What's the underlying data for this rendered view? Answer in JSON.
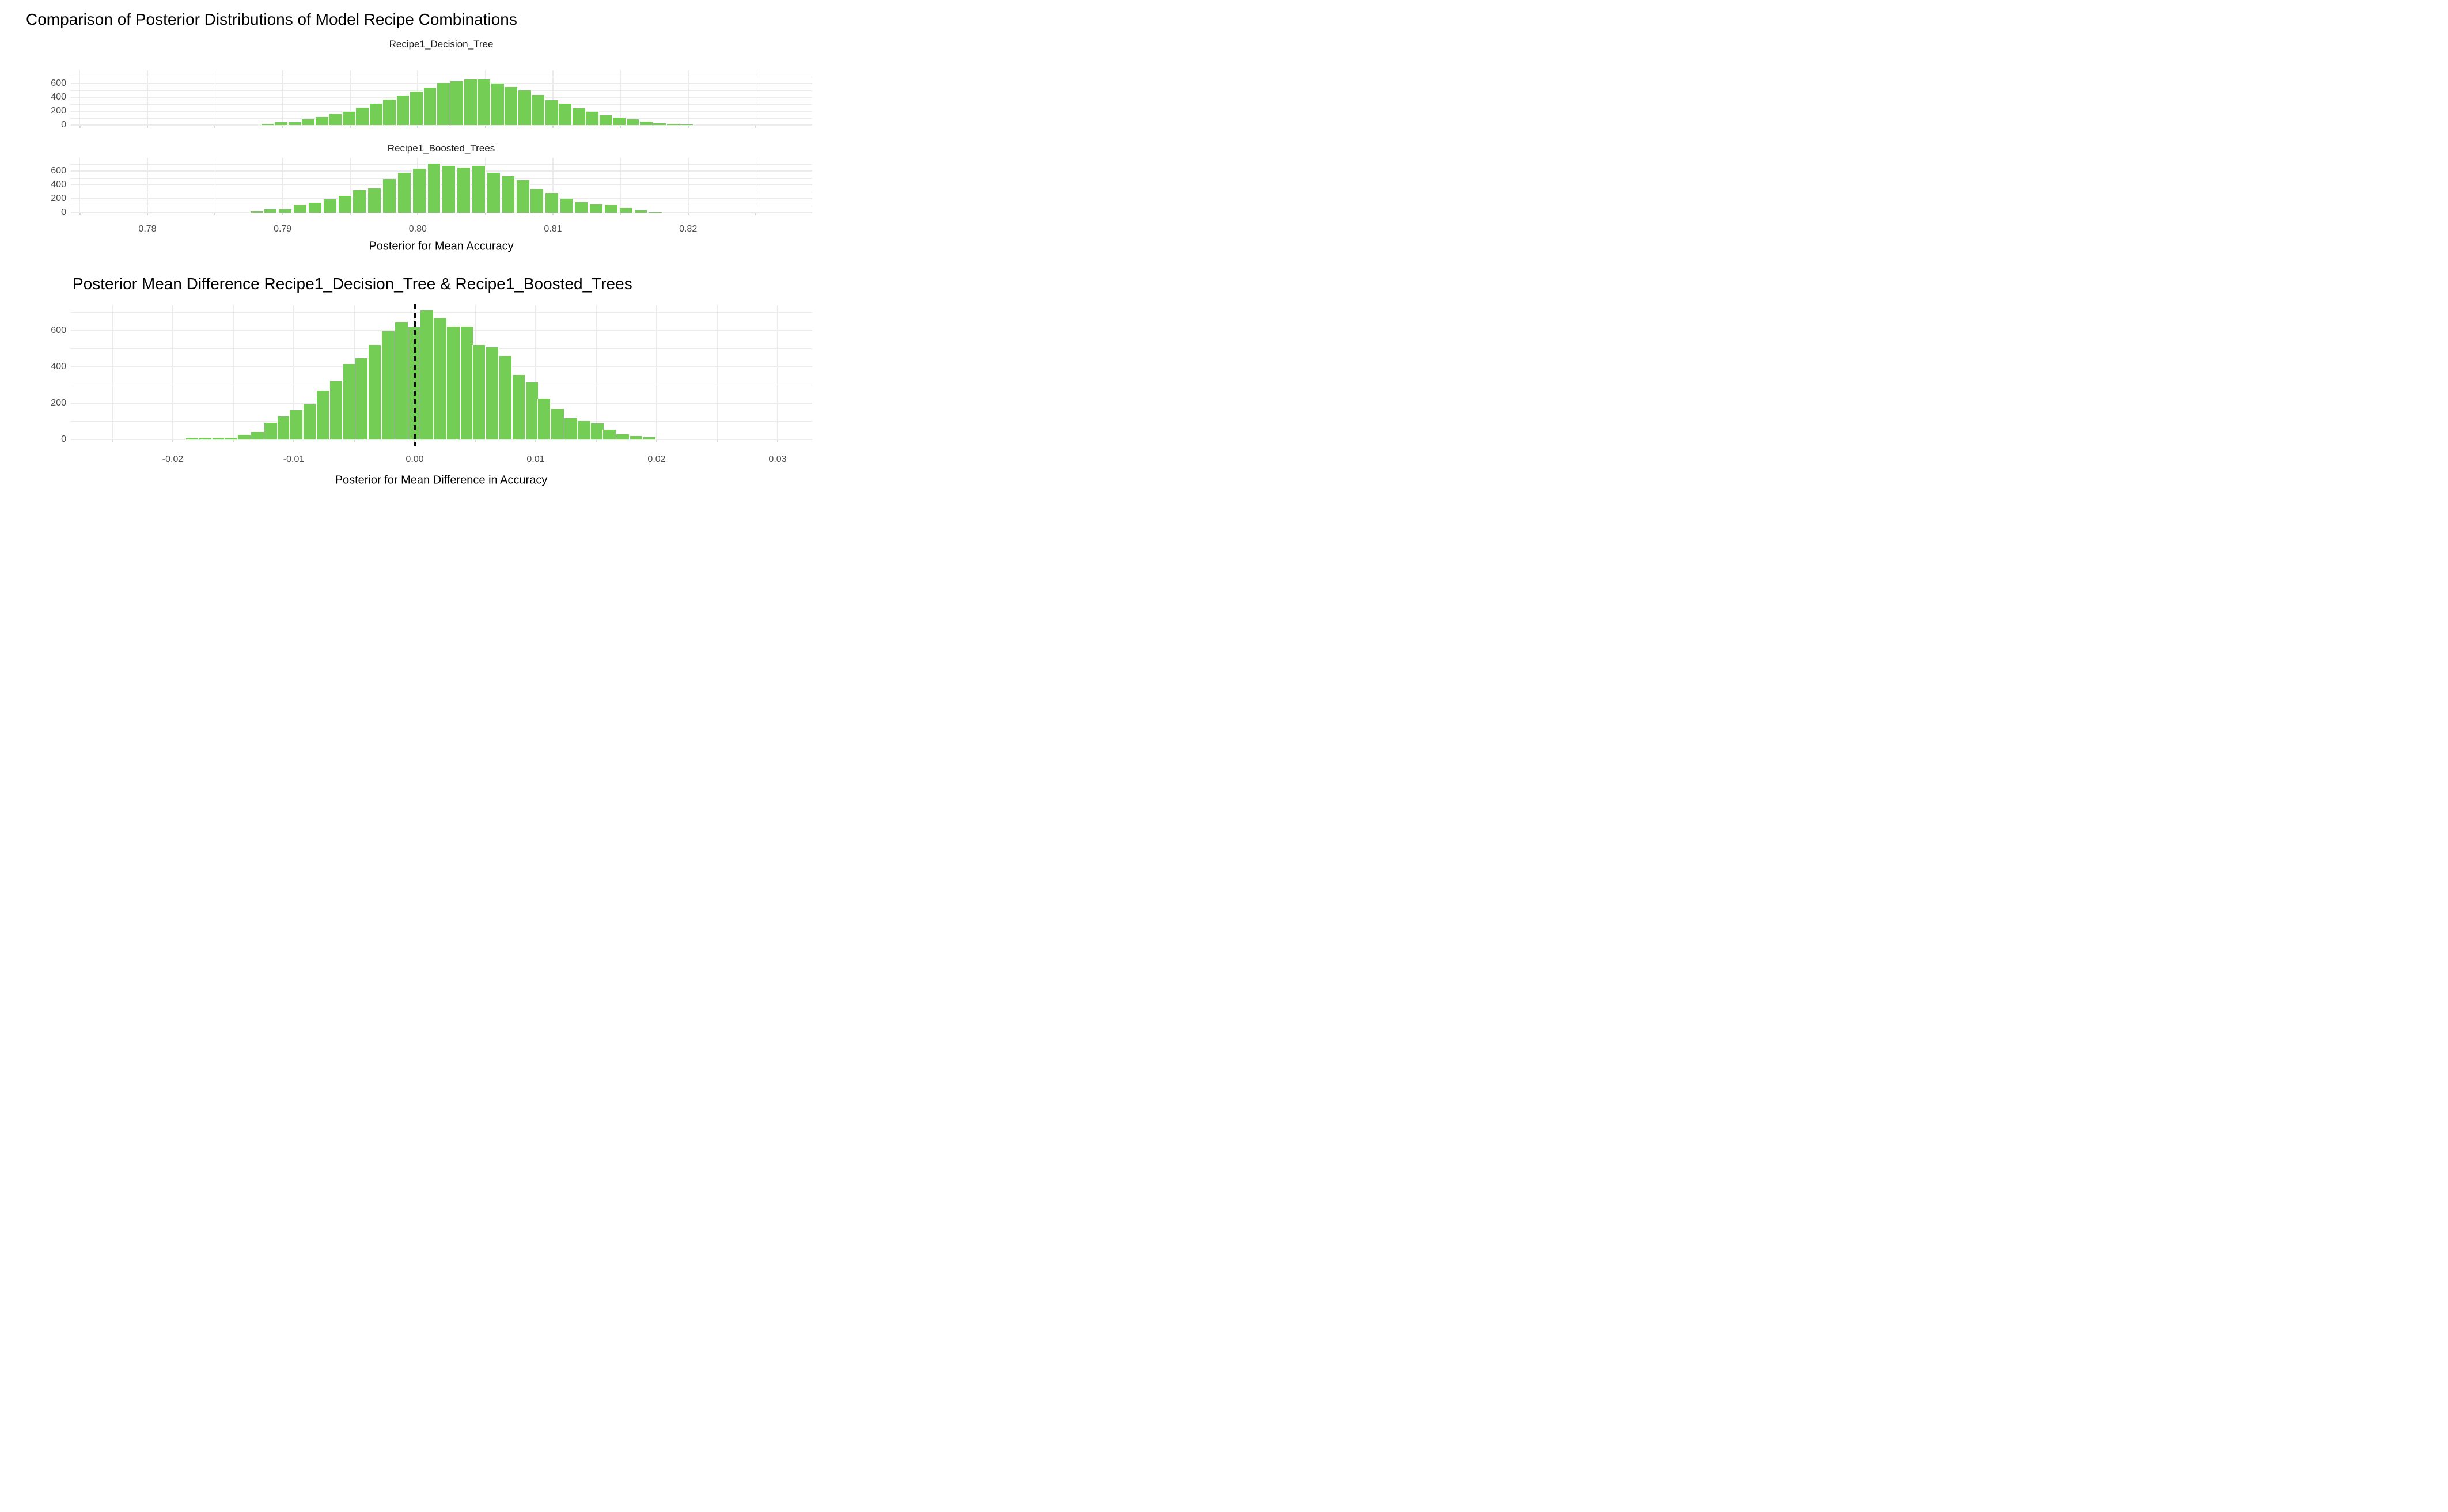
{
  "main_title": "Comparison of Posterior Distributions of Model Recipe Combinations",
  "colors": {
    "bar_fill": "#74ce56",
    "gridline": "#ebebeb",
    "tick_label": "#4d4d4d",
    "title_text": "#000000",
    "reference_line": "#000000",
    "background": "#ffffff"
  },
  "chart_data": [
    {
      "type": "histogram",
      "title": "Recipe1_Decision_Tree",
      "xlabel": "Posterior for Mean Accuracy",
      "ylabel": "",
      "legend": "none",
      "grid": "on",
      "xlim": [
        0.7744,
        0.8292
      ],
      "ylim": [
        0,
        780
      ],
      "x_ticks": [
        0.78,
        0.79,
        0.8,
        0.81,
        0.82
      ],
      "x_tick_labels": [
        "0.78",
        "0.79",
        "0.80",
        "0.81",
        "0.82"
      ],
      "show_x_tick_labels": false,
      "x_minor": [
        0.775,
        0.785,
        0.795,
        0.805,
        0.815,
        0.825
      ],
      "y_ticks": [
        0,
        200,
        400,
        600
      ],
      "y_tick_labels": [
        "0",
        "200",
        "400",
        "600"
      ],
      "y_minor": [
        100,
        300,
        500,
        700
      ],
      "x": [
        0.7889,
        0.7899,
        0.7909,
        0.7919,
        0.7929,
        0.7939,
        0.7949,
        0.7959,
        0.7969,
        0.7979,
        0.7989,
        0.7999,
        0.8009,
        0.8019,
        0.8029,
        0.8039,
        0.8049,
        0.8059,
        0.8069,
        0.8079,
        0.8089,
        0.8099,
        0.8109,
        0.8119,
        0.8129,
        0.8139,
        0.8149,
        0.8159,
        0.8169,
        0.8179,
        0.8189,
        0.8199
      ],
      "values": [
        15,
        40,
        45,
        80,
        120,
        160,
        195,
        250,
        310,
        370,
        430,
        485,
        540,
        610,
        640,
        660,
        665,
        605,
        550,
        500,
        435,
        360,
        310,
        240,
        190,
        140,
        110,
        80,
        50,
        28,
        14,
        6
      ]
    },
    {
      "type": "histogram",
      "title": "Recipe1_Boosted_Trees",
      "xlabel": "Posterior for Mean Accuracy",
      "ylabel": "",
      "legend": "none",
      "grid": "on",
      "xlim": [
        0.7744,
        0.8292
      ],
      "ylim": [
        0,
        780
      ],
      "x_ticks": [
        0.78,
        0.79,
        0.8,
        0.81,
        0.82
      ],
      "x_tick_labels": [
        "0.78",
        "0.79",
        "0.80",
        "0.81",
        "0.82"
      ],
      "show_x_tick_labels": true,
      "x_minor": [
        0.775,
        0.785,
        0.795,
        0.805,
        0.815,
        0.825
      ],
      "y_ticks": [
        0,
        200,
        400,
        600
      ],
      "y_tick_labels": [
        "0",
        "200",
        "400",
        "600"
      ],
      "y_minor": [
        100,
        300,
        500,
        700
      ],
      "x": [
        0.7881,
        0.7891,
        0.7902,
        0.7913,
        0.7924,
        0.7935,
        0.7946,
        0.7957,
        0.7968,
        0.7979,
        0.799,
        0.8001,
        0.8012,
        0.8023,
        0.8034,
        0.8045,
        0.8056,
        0.8067,
        0.8078,
        0.8088,
        0.8099,
        0.811,
        0.8121,
        0.8132,
        0.8143,
        0.8154,
        0.8165,
        0.8176
      ],
      "values": [
        15,
        50,
        50,
        105,
        140,
        195,
        240,
        325,
        355,
        485,
        580,
        640,
        710,
        675,
        655,
        675,
        580,
        525,
        470,
        340,
        285,
        205,
        150,
        120,
        110,
        70,
        35,
        10
      ]
    },
    {
      "type": "histogram",
      "title": "Posterior Mean Difference Recipe1_Decision_Tree & Recipe1_Boosted_Trees",
      "xlabel": "Posterior for Mean Difference in Accuracy",
      "ylabel": "",
      "legend": "none",
      "grid": "on",
      "xlim": [
        -0.0284,
        0.0329
      ],
      "ylim": [
        0,
        740
      ],
      "x_ticks": [
        -0.02,
        -0.01,
        0.0,
        0.01,
        0.02,
        0.03
      ],
      "x_tick_labels": [
        "-0.02",
        "-0.01",
        "0.00",
        "0.01",
        "0.02",
        "0.03"
      ],
      "show_x_tick_labels": true,
      "x_minor": [
        -0.025,
        -0.015,
        -0.005,
        0.005,
        0.015,
        0.025
      ],
      "y_ticks": [
        0,
        200,
        400,
        600
      ],
      "y_tick_labels": [
        "0",
        "200",
        "400",
        "600"
      ],
      "y_minor": [
        100,
        300,
        500,
        700
      ],
      "reference_line": {
        "x": 0.0,
        "style": "dashed",
        "color": "#000000"
      },
      "x": [
        -0.0184,
        -0.0173,
        -0.0162,
        -0.0152,
        -0.0141,
        -0.013,
        -0.0119,
        -0.0108,
        -0.0098,
        -0.0087,
        -0.0076,
        -0.0065,
        -0.0054,
        -0.0044,
        -0.0033,
        -0.0022,
        -0.0011,
        0.0,
        0.001,
        0.0021,
        0.0032,
        0.0043,
        0.0053,
        0.0064,
        0.0075,
        0.0086,
        0.0097,
        0.0107,
        0.0118,
        0.0129,
        0.014,
        0.0151,
        0.0161,
        0.0172,
        0.0183,
        0.0194
      ],
      "values": [
        8,
        8,
        8,
        10,
        26,
        42,
        93,
        127,
        161,
        195,
        271,
        322,
        415,
        449,
        520,
        597,
        648,
        618,
        711,
        669,
        622,
        622,
        520,
        508,
        461,
        355,
        313,
        224,
        169,
        119,
        102,
        89,
        55,
        30,
        20,
        12
      ]
    }
  ]
}
